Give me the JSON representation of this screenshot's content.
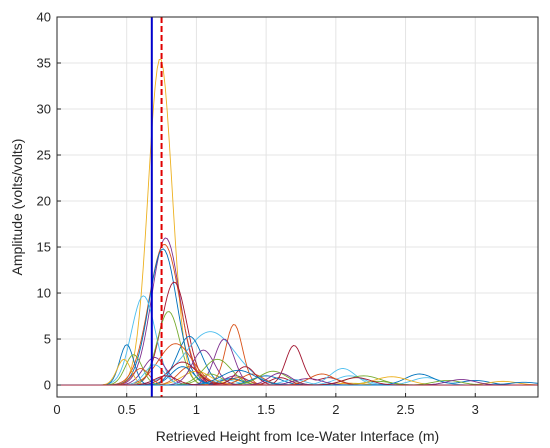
{
  "chart_data": {
    "type": "line",
    "title": "",
    "xlabel": "Retrieved Height from Ice-Water Interface (m)",
    "ylabel": "Amplitude (volts/volts)",
    "xlim": [
      0,
      3.45
    ],
    "ylim": [
      -1.3,
      40
    ],
    "xticks": [
      0,
      0.5,
      1,
      1.5,
      2,
      2.5,
      3
    ],
    "xtick_labels": [
      "0",
      "0.5",
      "1",
      "1.5",
      "2",
      "2.5",
      "3"
    ],
    "yticks": [
      0,
      5,
      10,
      15,
      20,
      25,
      30,
      35,
      40
    ],
    "ytick_labels": [
      "0",
      "5",
      "10",
      "15",
      "20",
      "25",
      "30",
      "35",
      "40"
    ],
    "grid": true,
    "vertical_lines": [
      {
        "x": 0.68,
        "style": "solid",
        "color": "#0000cc"
      },
      {
        "x": 0.75,
        "style": "dashed",
        "color": "#e00000"
      }
    ],
    "series": [
      {
        "color": "#edb120",
        "peaks": [
          [
            0.74,
            35.5,
            0.085
          ],
          [
            1.25,
            0.6,
            0.08
          ],
          [
            2.1,
            0.2,
            0.1
          ]
        ]
      },
      {
        "color": "#7e2f8e",
        "peaks": [
          [
            0.78,
            16.0,
            0.1
          ],
          [
            1.28,
            1.0,
            0.08
          ]
        ]
      },
      {
        "color": "#d95319",
        "peaks": [
          [
            0.77,
            15.3,
            0.11
          ],
          [
            1.3,
            0.8,
            0.07
          ]
        ]
      },
      {
        "color": "#0072bd",
        "peaks": [
          [
            0.76,
            14.8,
            0.1
          ],
          [
            1.25,
            0.7,
            0.08
          ]
        ]
      },
      {
        "color": "#a2142f",
        "peaks": [
          [
            0.84,
            11.2,
            0.09
          ],
          [
            1.6,
            0.8,
            0.07
          ]
        ]
      },
      {
        "color": "#4dbeee",
        "peaks": [
          [
            0.62,
            9.7,
            0.085
          ],
          [
            1.2,
            0.6,
            0.08
          ]
        ]
      },
      {
        "color": "#77ac30",
        "peaks": [
          [
            0.8,
            8.0,
            0.08
          ],
          [
            2.3,
            0.4,
            0.1
          ]
        ]
      },
      {
        "color": "#4dbeee",
        "peaks": [
          [
            1.1,
            5.8,
            0.18
          ],
          [
            2.1,
            1.0,
            0.1
          ]
        ]
      },
      {
        "color": "#d95319",
        "peaks": [
          [
            1.27,
            6.6,
            0.06
          ],
          [
            0.95,
            2.0,
            0.08
          ]
        ]
      },
      {
        "color": "#a2142f",
        "peaks": [
          [
            1.7,
            4.3,
            0.06
          ],
          [
            1.95,
            0.8,
            0.08
          ]
        ]
      },
      {
        "color": "#7e2f8e",
        "peaks": [
          [
            1.2,
            5.0,
            0.07
          ],
          [
            0.7,
            3.0,
            0.08
          ]
        ]
      },
      {
        "color": "#0072bd",
        "peaks": [
          [
            0.95,
            5.3,
            0.09
          ],
          [
            1.5,
            1.0,
            0.1
          ]
        ]
      },
      {
        "color": "#0072bd",
        "peaks": [
          [
            0.5,
            4.4,
            0.05
          ],
          [
            0.9,
            2.0,
            0.08
          ]
        ]
      },
      {
        "color": "#77ac30",
        "peaks": [
          [
            0.55,
            3.3,
            0.06
          ],
          [
            1.1,
            1.2,
            0.08
          ]
        ]
      },
      {
        "color": "#edb120",
        "peaks": [
          [
            0.48,
            2.8,
            0.05
          ],
          [
            1.0,
            1.5,
            0.1
          ]
        ]
      },
      {
        "color": "#d95319",
        "peaks": [
          [
            0.85,
            4.5,
            0.12
          ],
          [
            1.4,
            1.2,
            0.08
          ]
        ]
      },
      {
        "color": "#4dbeee",
        "peaks": [
          [
            2.05,
            1.8,
            0.09
          ],
          [
            2.65,
            0.8,
            0.1
          ]
        ]
      },
      {
        "color": "#77ac30",
        "peaks": [
          [
            1.55,
            1.5,
            0.1
          ],
          [
            2.2,
            1.0,
            0.12
          ]
        ]
      },
      {
        "color": "#7e2f8e",
        "peaks": [
          [
            1.05,
            3.8,
            0.08
          ],
          [
            1.8,
            0.7,
            0.1
          ]
        ]
      },
      {
        "color": "#a2142f",
        "peaks": [
          [
            0.9,
            2.5,
            0.1
          ],
          [
            1.35,
            2.0,
            0.07
          ]
        ]
      },
      {
        "color": "#0072bd",
        "peaks": [
          [
            2.6,
            1.2,
            0.1
          ],
          [
            3.0,
            0.5,
            0.1
          ]
        ]
      },
      {
        "color": "#edb120",
        "peaks": [
          [
            2.4,
            0.9,
            0.12
          ],
          [
            3.2,
            0.4,
            0.1
          ]
        ]
      },
      {
        "color": "#4dbeee",
        "peaks": [
          [
            0.7,
            2.2,
            0.07
          ],
          [
            1.7,
            0.6,
            0.08
          ]
        ]
      },
      {
        "color": "#77ac30",
        "peaks": [
          [
            1.15,
            2.8,
            0.1
          ],
          [
            2.8,
            0.5,
            0.1
          ]
        ]
      },
      {
        "color": "#d95319",
        "peaks": [
          [
            0.6,
            1.8,
            0.06
          ],
          [
            1.9,
            1.2,
            0.09
          ]
        ]
      },
      {
        "color": "#7e2f8e",
        "peaks": [
          [
            1.6,
            1.3,
            0.08
          ],
          [
            2.9,
            0.6,
            0.1
          ]
        ]
      },
      {
        "color": "#0072bd",
        "peaks": [
          [
            1.3,
            1.6,
            0.12
          ],
          [
            3.35,
            0.3,
            0.1
          ]
        ]
      },
      {
        "color": "#a2142f",
        "peaks": [
          [
            2.15,
            0.8,
            0.1
          ],
          [
            0.78,
            1.0,
            0.08
          ]
        ]
      }
    ]
  }
}
